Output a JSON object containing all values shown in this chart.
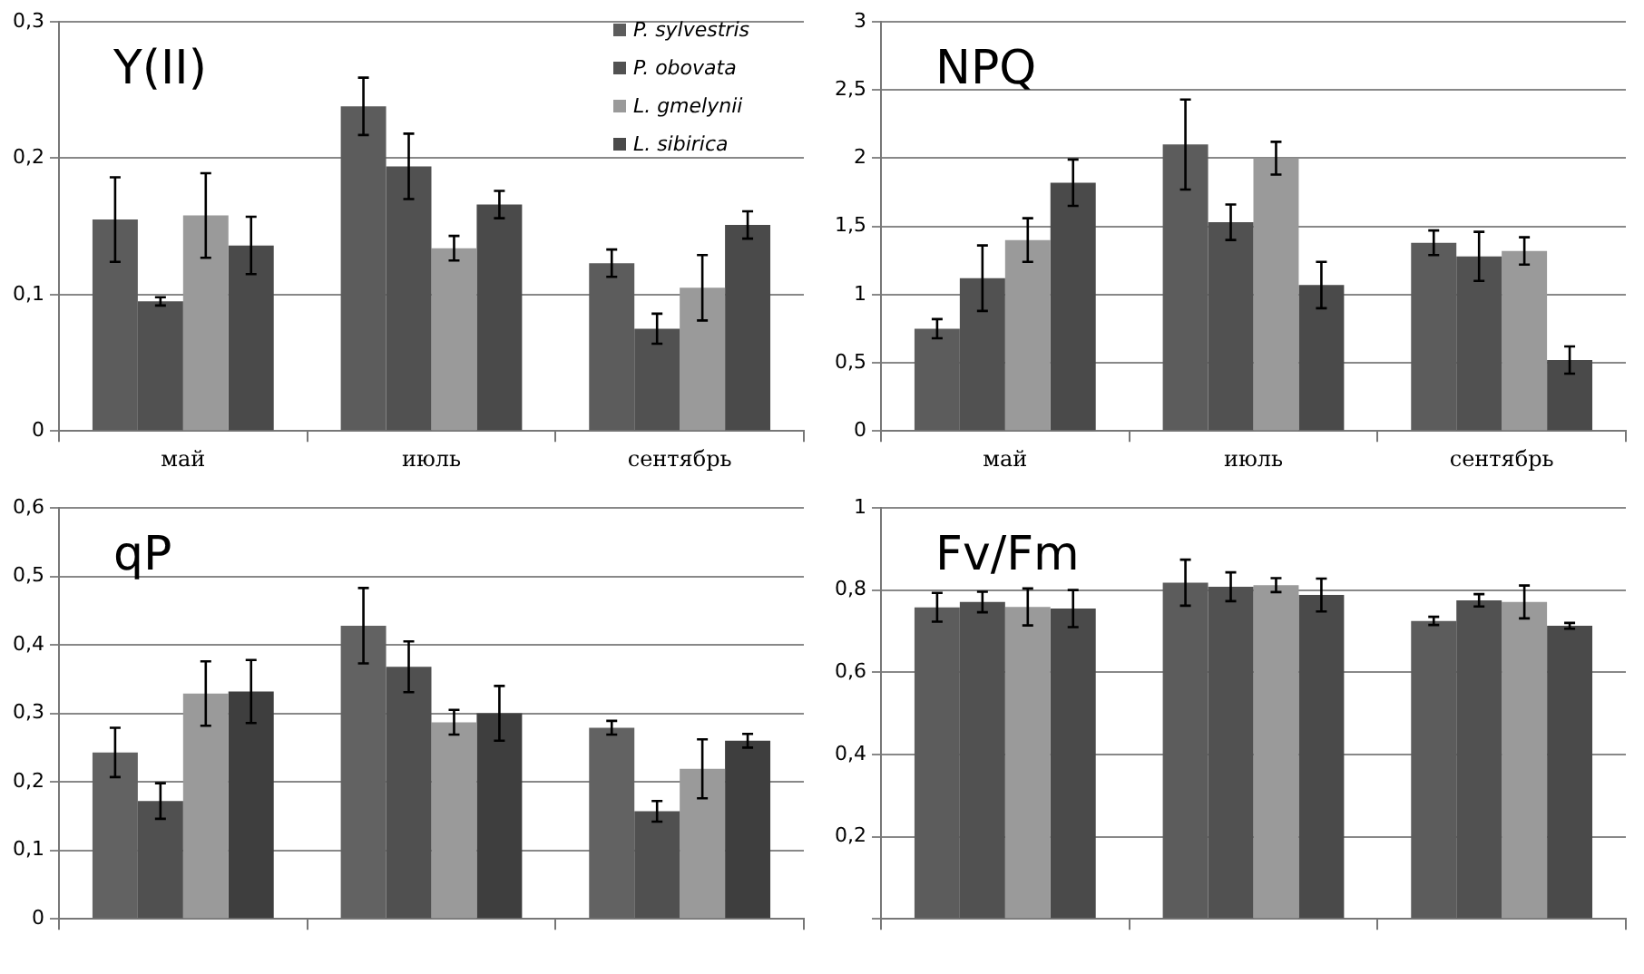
{
  "chart_data": [
    {
      "type": "bar",
      "title": "Y(II)",
      "categories": [
        "май",
        "июль",
        "сентябрь"
      ],
      "ylim": [
        0,
        0.3
      ],
      "yticks": [
        0,
        {
          "value": 0.1,
          "label": "0,1"
        },
        {
          "value": 0.2,
          "label": "0,2"
        },
        {
          "value": 0.3,
          "label": "0,3"
        }
      ],
      "grid": "y",
      "legend": "top right",
      "series": [
        {
          "name": "P. sylvestris",
          "color": "#5c5c5c",
          "values": [
            0.155,
            0.238,
            0.123
          ],
          "errors": [
            0.031,
            0.021,
            0.01
          ]
        },
        {
          "name": "P. obovata",
          "color": "#515151",
          "values": [
            0.095,
            0.194,
            0.075
          ],
          "errors": [
            0.003,
            0.024,
            0.011
          ]
        },
        {
          "name": "L. gmelynii",
          "color": "#9a9a9a",
          "values": [
            0.158,
            0.134,
            0.105
          ],
          "errors": [
            0.031,
            0.009,
            0.024
          ]
        },
        {
          "name": "L. sibirica",
          "color": "#4a4a4a",
          "values": [
            0.136,
            0.166,
            0.151
          ],
          "errors": [
            0.021,
            0.01,
            0.01
          ]
        }
      ]
    },
    {
      "type": "bar",
      "title": "NPQ",
      "categories": [
        "май",
        "июль",
        "сентябрь"
      ],
      "ylim": [
        0,
        3
      ],
      "yticks": [
        0,
        {
          "value": 0.5,
          "label": "0,5"
        },
        1,
        {
          "value": 1.5,
          "label": "1,5"
        },
        2,
        {
          "value": 2.5,
          "label": "2,5"
        },
        3
      ],
      "grid": "y",
      "series": [
        {
          "color": "#5c5c5c",
          "values": [
            0.75,
            2.1,
            1.38
          ],
          "errors": [
            0.07,
            0.33,
            0.09
          ]
        },
        {
          "color": "#515151",
          "values": [
            1.12,
            1.53,
            1.28
          ],
          "errors": [
            0.24,
            0.13,
            0.18
          ]
        },
        {
          "color": "#9a9a9a",
          "values": [
            1.4,
            2.0,
            1.32
          ],
          "errors": [
            0.16,
            0.12,
            0.1
          ]
        },
        {
          "color": "#4a4a4a",
          "values": [
            1.82,
            1.07,
            0.52
          ],
          "errors": [
            0.17,
            0.17,
            0.1
          ]
        }
      ]
    },
    {
      "type": "bar",
      "title": "qP",
      "categories": [
        null,
        null,
        null
      ],
      "ylim": [
        0,
        0.6
      ],
      "yticks": [
        0,
        {
          "value": 0.1,
          "label": "0,1"
        },
        {
          "value": 0.2,
          "label": "0,2"
        },
        {
          "value": 0.3,
          "label": "0,3"
        },
        {
          "value": 0.4,
          "label": "0,4"
        },
        {
          "value": 0.5,
          "label": "0,5"
        },
        {
          "value": 0.6,
          "label": "0,6"
        }
      ],
      "grid": "y",
      "series": [
        {
          "color": "#626262",
          "values": [
            0.243,
            0.428,
            0.279
          ],
          "errors": [
            0.036,
            0.055,
            0.01
          ]
        },
        {
          "color": "#505050",
          "values": [
            0.172,
            0.368,
            0.157
          ],
          "errors": [
            0.026,
            0.037,
            0.015
          ]
        },
        {
          "color": "#9a9a9a",
          "values": [
            0.329,
            0.287,
            0.219
          ],
          "errors": [
            0.047,
            0.018,
            0.043
          ]
        },
        {
          "color": "#3e3e3e",
          "values": [
            0.332,
            0.3,
            0.26
          ],
          "errors": [
            0.046,
            0.04,
            0.01
          ]
        }
      ]
    },
    {
      "type": "bar",
      "title": "Fv/Fm",
      "categories": [
        null,
        null,
        null
      ],
      "ylim": [
        0,
        1
      ],
      "yticks": [
        {
          "value": 0,
          "label": null
        },
        {
          "value": 0.2,
          "label": "0,2"
        },
        {
          "value": 0.4,
          "label": "0,4"
        },
        {
          "value": 0.6,
          "label": "0,6"
        },
        {
          "value": 0.8,
          "label": "0,8"
        },
        1
      ],
      "grid": "y",
      "series": [
        {
          "color": "#5c5c5c",
          "values": [
            0.758,
            0.818,
            0.725
          ],
          "errors": [
            0.035,
            0.056,
            0.01
          ]
        },
        {
          "color": "#515151",
          "values": [
            0.771,
            0.808,
            0.775
          ],
          "errors": [
            0.025,
            0.035,
            0.015
          ]
        },
        {
          "color": "#9a9a9a",
          "values": [
            0.759,
            0.812,
            0.771
          ],
          "errors": [
            0.045,
            0.017,
            0.04
          ]
        },
        {
          "color": "#4a4a4a",
          "values": [
            0.755,
            0.788,
            0.713
          ],
          "errors": [
            0.045,
            0.04,
            0.007
          ]
        }
      ]
    }
  ]
}
